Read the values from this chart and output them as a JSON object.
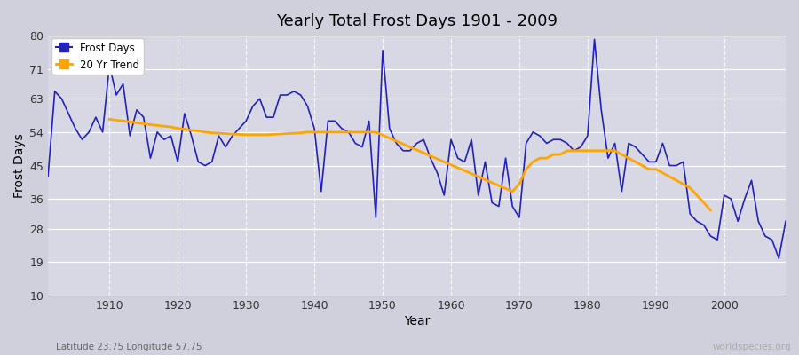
{
  "title": "Yearly Total Frost Days 1901 - 2009",
  "xlabel": "Year",
  "ylabel": "Frost Days",
  "subtitle": "Latitude 23.75 Longitude 57.75",
  "watermark": "worldspecies.org",
  "line_color": "#2222bb",
  "trend_color": "#FFA500",
  "fig_bg_color": "#d0d0dc",
  "plot_bg_color": "#d8d8e4",
  "ylim": [
    10,
    80
  ],
  "yticks": [
    10,
    19,
    28,
    36,
    45,
    54,
    63,
    71,
    80
  ],
  "xlim": [
    1901,
    2009
  ],
  "xticks": [
    1910,
    1920,
    1930,
    1940,
    1950,
    1960,
    1970,
    1980,
    1990,
    2000
  ],
  "years": [
    1901,
    1902,
    1903,
    1904,
    1905,
    1906,
    1907,
    1908,
    1909,
    1910,
    1911,
    1912,
    1913,
    1914,
    1915,
    1916,
    1917,
    1918,
    1919,
    1920,
    1921,
    1922,
    1923,
    1924,
    1925,
    1926,
    1927,
    1928,
    1929,
    1930,
    1931,
    1932,
    1933,
    1934,
    1935,
    1936,
    1937,
    1938,
    1939,
    1940,
    1941,
    1942,
    1943,
    1944,
    1945,
    1946,
    1947,
    1948,
    1949,
    1950,
    1951,
    1952,
    1953,
    1954,
    1955,
    1956,
    1957,
    1958,
    1959,
    1960,
    1961,
    1962,
    1963,
    1964,
    1965,
    1966,
    1967,
    1968,
    1969,
    1970,
    1971,
    1972,
    1973,
    1974,
    1975,
    1976,
    1977,
    1978,
    1979,
    1980,
    1981,
    1982,
    1983,
    1984,
    1985,
    1986,
    1987,
    1988,
    1989,
    1990,
    1991,
    1992,
    1993,
    1994,
    1995,
    1996,
    1997,
    1998,
    1999,
    2000,
    2001,
    2002,
    2003,
    2004,
    2005,
    2006,
    2007,
    2008,
    2009
  ],
  "frost_days": [
    42,
    65,
    63,
    59,
    55,
    52,
    54,
    58,
    54,
    72,
    64,
    67,
    53,
    60,
    58,
    47,
    54,
    52,
    53,
    46,
    59,
    53,
    46,
    45,
    46,
    53,
    50,
    53,
    55,
    57,
    61,
    63,
    58,
    58,
    64,
    64,
    65,
    64,
    61,
    55,
    38,
    57,
    57,
    55,
    54,
    51,
    50,
    57,
    31,
    76,
    55,
    51,
    49,
    49,
    51,
    52,
    47,
    43,
    37,
    52,
    47,
    46,
    52,
    37,
    46,
    35,
    34,
    47,
    34,
    31,
    51,
    54,
    53,
    51,
    52,
    52,
    51,
    49,
    50,
    53,
    79,
    60,
    47,
    51,
    38,
    51,
    50,
    48,
    46,
    46,
    51,
    45,
    45,
    46,
    32,
    30,
    29,
    26,
    25,
    37,
    36,
    30,
    36,
    41,
    30,
    26,
    25,
    20,
    30
  ],
  "trend_years": [
    1910,
    1911,
    1912,
    1913,
    1914,
    1915,
    1916,
    1917,
    1918,
    1919,
    1920,
    1921,
    1922,
    1923,
    1924,
    1925,
    1926,
    1927,
    1928,
    1929,
    1930,
    1931,
    1932,
    1933,
    1934,
    1935,
    1936,
    1937,
    1938,
    1939,
    1940,
    1941,
    1942,
    1943,
    1944,
    1945,
    1946,
    1947,
    1948,
    1949,
    1969,
    1970,
    1971,
    1972,
    1973,
    1974,
    1975,
    1976,
    1977,
    1978,
    1979,
    1980,
    1981,
    1982,
    1983,
    1984,
    1985,
    1986,
    1987,
    1988,
    1989,
    1990,
    1991,
    1992,
    1993,
    1994,
    1995,
    1996,
    1997,
    1998
  ],
  "trend_values": [
    57.5,
    57.2,
    57.0,
    56.8,
    56.5,
    56.3,
    56.0,
    55.8,
    55.6,
    55.4,
    55.0,
    54.8,
    54.5,
    54.3,
    54.0,
    53.8,
    53.7,
    53.6,
    53.5,
    53.4,
    53.3,
    53.3,
    53.3,
    53.3,
    53.4,
    53.5,
    53.6,
    53.7,
    53.8,
    54.0,
    54.0,
    54.0,
    54.0,
    54.0,
    54.0,
    54.0,
    54.0,
    54.0,
    54.0,
    54.0,
    38,
    40,
    44,
    46,
    47,
    47,
    48,
    48,
    49,
    49,
    49,
    49,
    49,
    49,
    49,
    49,
    48,
    47,
    46,
    45,
    44,
    44,
    43,
    42,
    41,
    40,
    39,
    37,
    35,
    33
  ]
}
